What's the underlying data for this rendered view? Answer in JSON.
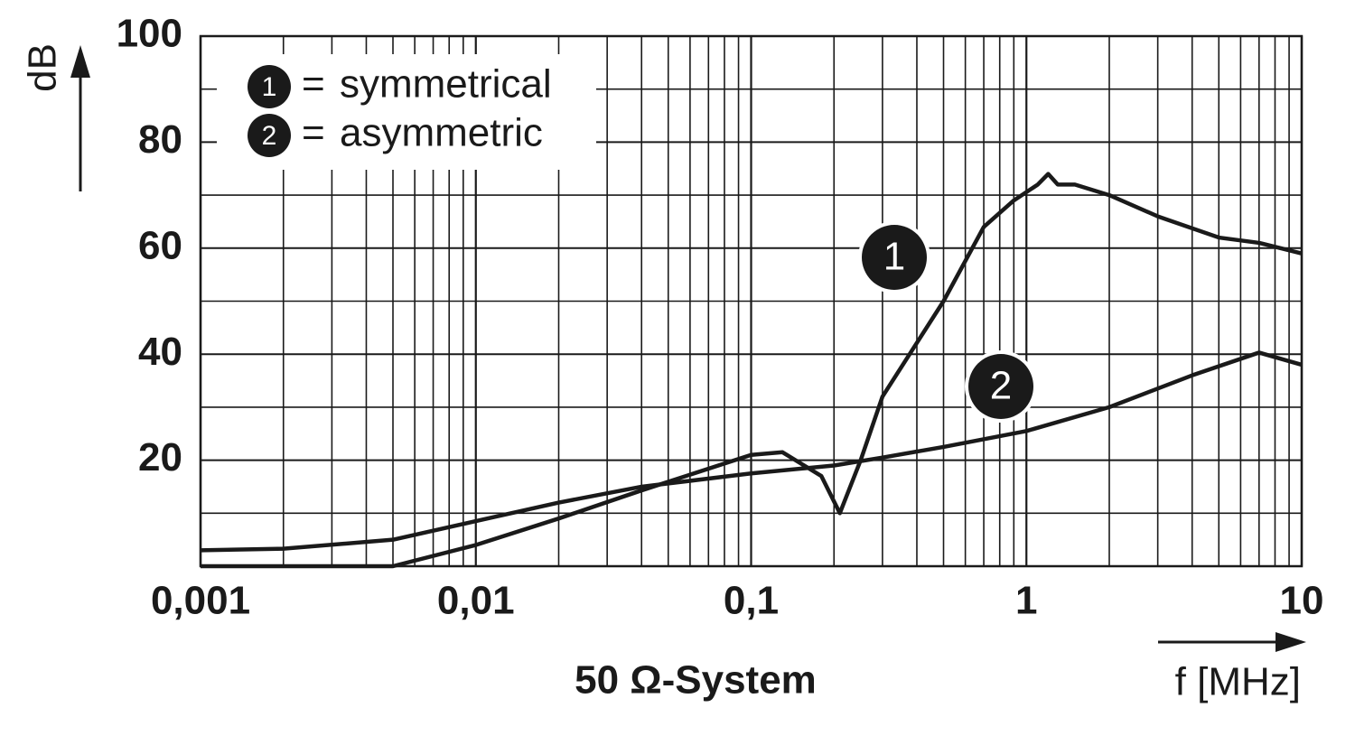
{
  "chart_data": {
    "type": "line",
    "subtitle": "50 Ω-System",
    "xlabel": "f [MHz]",
    "ylabel": "dB",
    "xscale": "log",
    "xlim": [
      0.001,
      10
    ],
    "xticks": [
      {
        "value": 0.001,
        "label": "0,001"
      },
      {
        "value": 0.01,
        "label": "0,01"
      },
      {
        "value": 0.1,
        "label": "0,1"
      },
      1,
      10
    ],
    "ylim": [
      0,
      100
    ],
    "yticks": [
      20,
      40,
      60,
      80,
      100
    ],
    "yminor": [
      10,
      30,
      50,
      70,
      90
    ],
    "grid": true,
    "legend": "upper left",
    "legend_sep": "=",
    "series": [
      {
        "name": "symmetrical",
        "marker": "1",
        "color": "#1a1a1a",
        "x": [
          0.001,
          0.005,
          0.01,
          0.02,
          0.04,
          0.1,
          0.13,
          0.18,
          0.21,
          0.25,
          0.3,
          0.5,
          0.7,
          0.9,
          1.1,
          1.2,
          1.3,
          1.5,
          2,
          3,
          5,
          7,
          10
        ],
        "values": [
          0,
          0,
          4,
          9,
          14.3,
          21,
          21.5,
          17,
          10,
          20,
          32,
          50,
          64,
          69,
          72,
          74,
          72,
          72,
          70,
          66,
          62,
          61,
          59
        ]
      },
      {
        "name": "asymmetric",
        "marker": "2",
        "color": "#1a1a1a",
        "x": [
          0.001,
          0.002,
          0.005,
          0.01,
          0.02,
          0.04,
          0.1,
          0.2,
          0.3,
          0.5,
          1,
          2,
          4,
          7,
          10
        ],
        "values": [
          3,
          3.3,
          5,
          8.5,
          12,
          15,
          17.5,
          19,
          20.5,
          22.5,
          25.5,
          30,
          36,
          40.3,
          38
        ]
      }
    ]
  }
}
